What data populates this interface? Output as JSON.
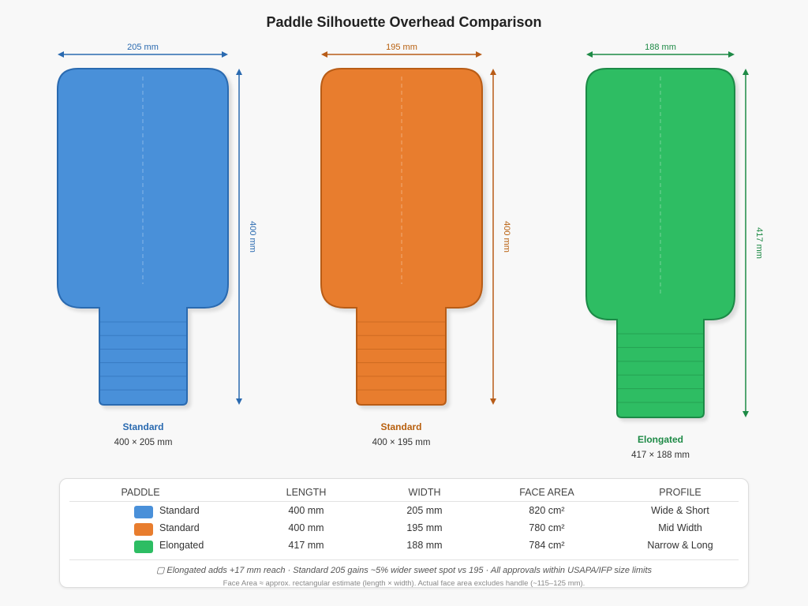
{
  "title": "Paddle Silhouette Overhead Comparison",
  "unit": "mm",
  "paddles": [
    {
      "name": "Standard",
      "length": 400,
      "width": 205,
      "dims": "400 × 205 mm",
      "width_label": "205 mm",
      "length_label": "400 mm",
      "color": "#4a90d9",
      "stroke": "#2a6ab0",
      "label_color": "#2a6ab0"
    },
    {
      "name": "Standard",
      "length": 400,
      "width": 195,
      "dims": "400 × 195 mm",
      "width_label": "195 mm",
      "length_label": "400 mm",
      "color": "#e87d2e",
      "stroke": "#b85c18",
      "label_color": "#b8600f"
    },
    {
      "name": "Elongated",
      "length": 417,
      "width": 188,
      "dims": "417 × 188 mm",
      "width_label": "188 mm",
      "length_label": "417 mm",
      "color": "#2dbd63",
      "stroke": "#1e8a46",
      "label_color": "#1e8a46"
    }
  ],
  "table": {
    "headers": [
      "PADDLE",
      "LENGTH",
      "WIDTH",
      "FACE AREA",
      "PROFILE"
    ],
    "rows": [
      [
        "Standard",
        "400 mm",
        "205 mm",
        "820 cm²",
        "Wide & Short"
      ],
      [
        "Standard",
        "400 mm",
        "195 mm",
        "780 cm²",
        "Mid Width"
      ],
      [
        "Elongated",
        "417 mm",
        "188 mm",
        "784 cm²",
        "Narrow & Long"
      ]
    ],
    "note": "▢ Elongated adds +17 mm reach · Standard 205 gains ~5% wider sweet spot vs 195 · All approvals within USAPA/IFP size limits",
    "footnote": "Face Area ≈ approx. rectangular estimate (length × width). Actual face area excludes handle (~115–125 mm)."
  }
}
